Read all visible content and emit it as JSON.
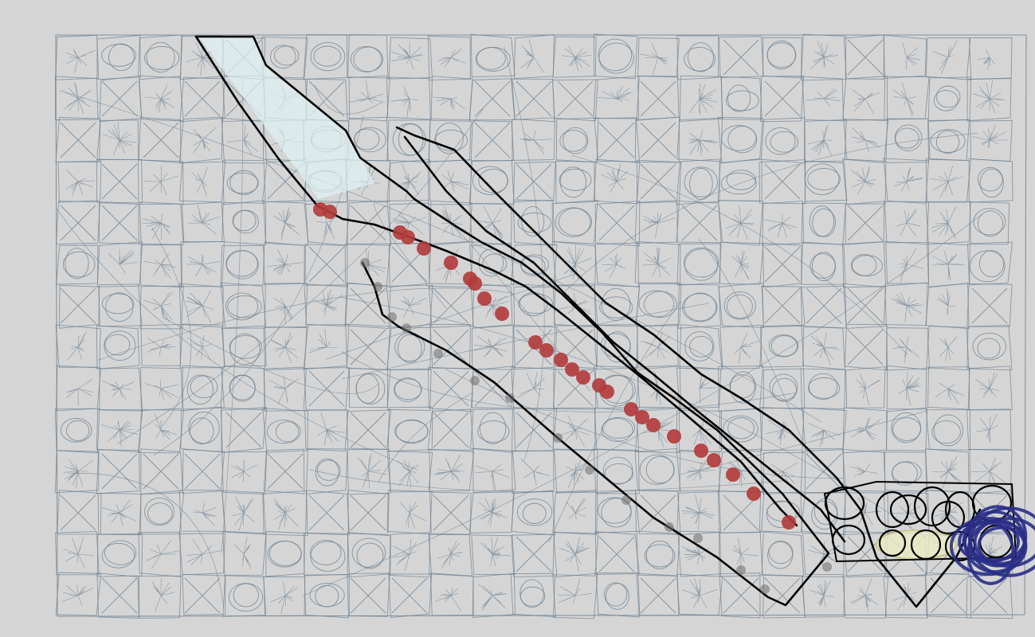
{
  "canvas": {
    "background_color": "#d5d5d5",
    "grid_stroke_color": "#6f8291",
    "outline_color": "#000000",
    "dot_color": "#b23a3a",
    "highlight_cyan_color": "#dff2f4",
    "highlight_yellow_color": "#ececc4",
    "blue_scribble_color": "#2a2d86"
  }
}
